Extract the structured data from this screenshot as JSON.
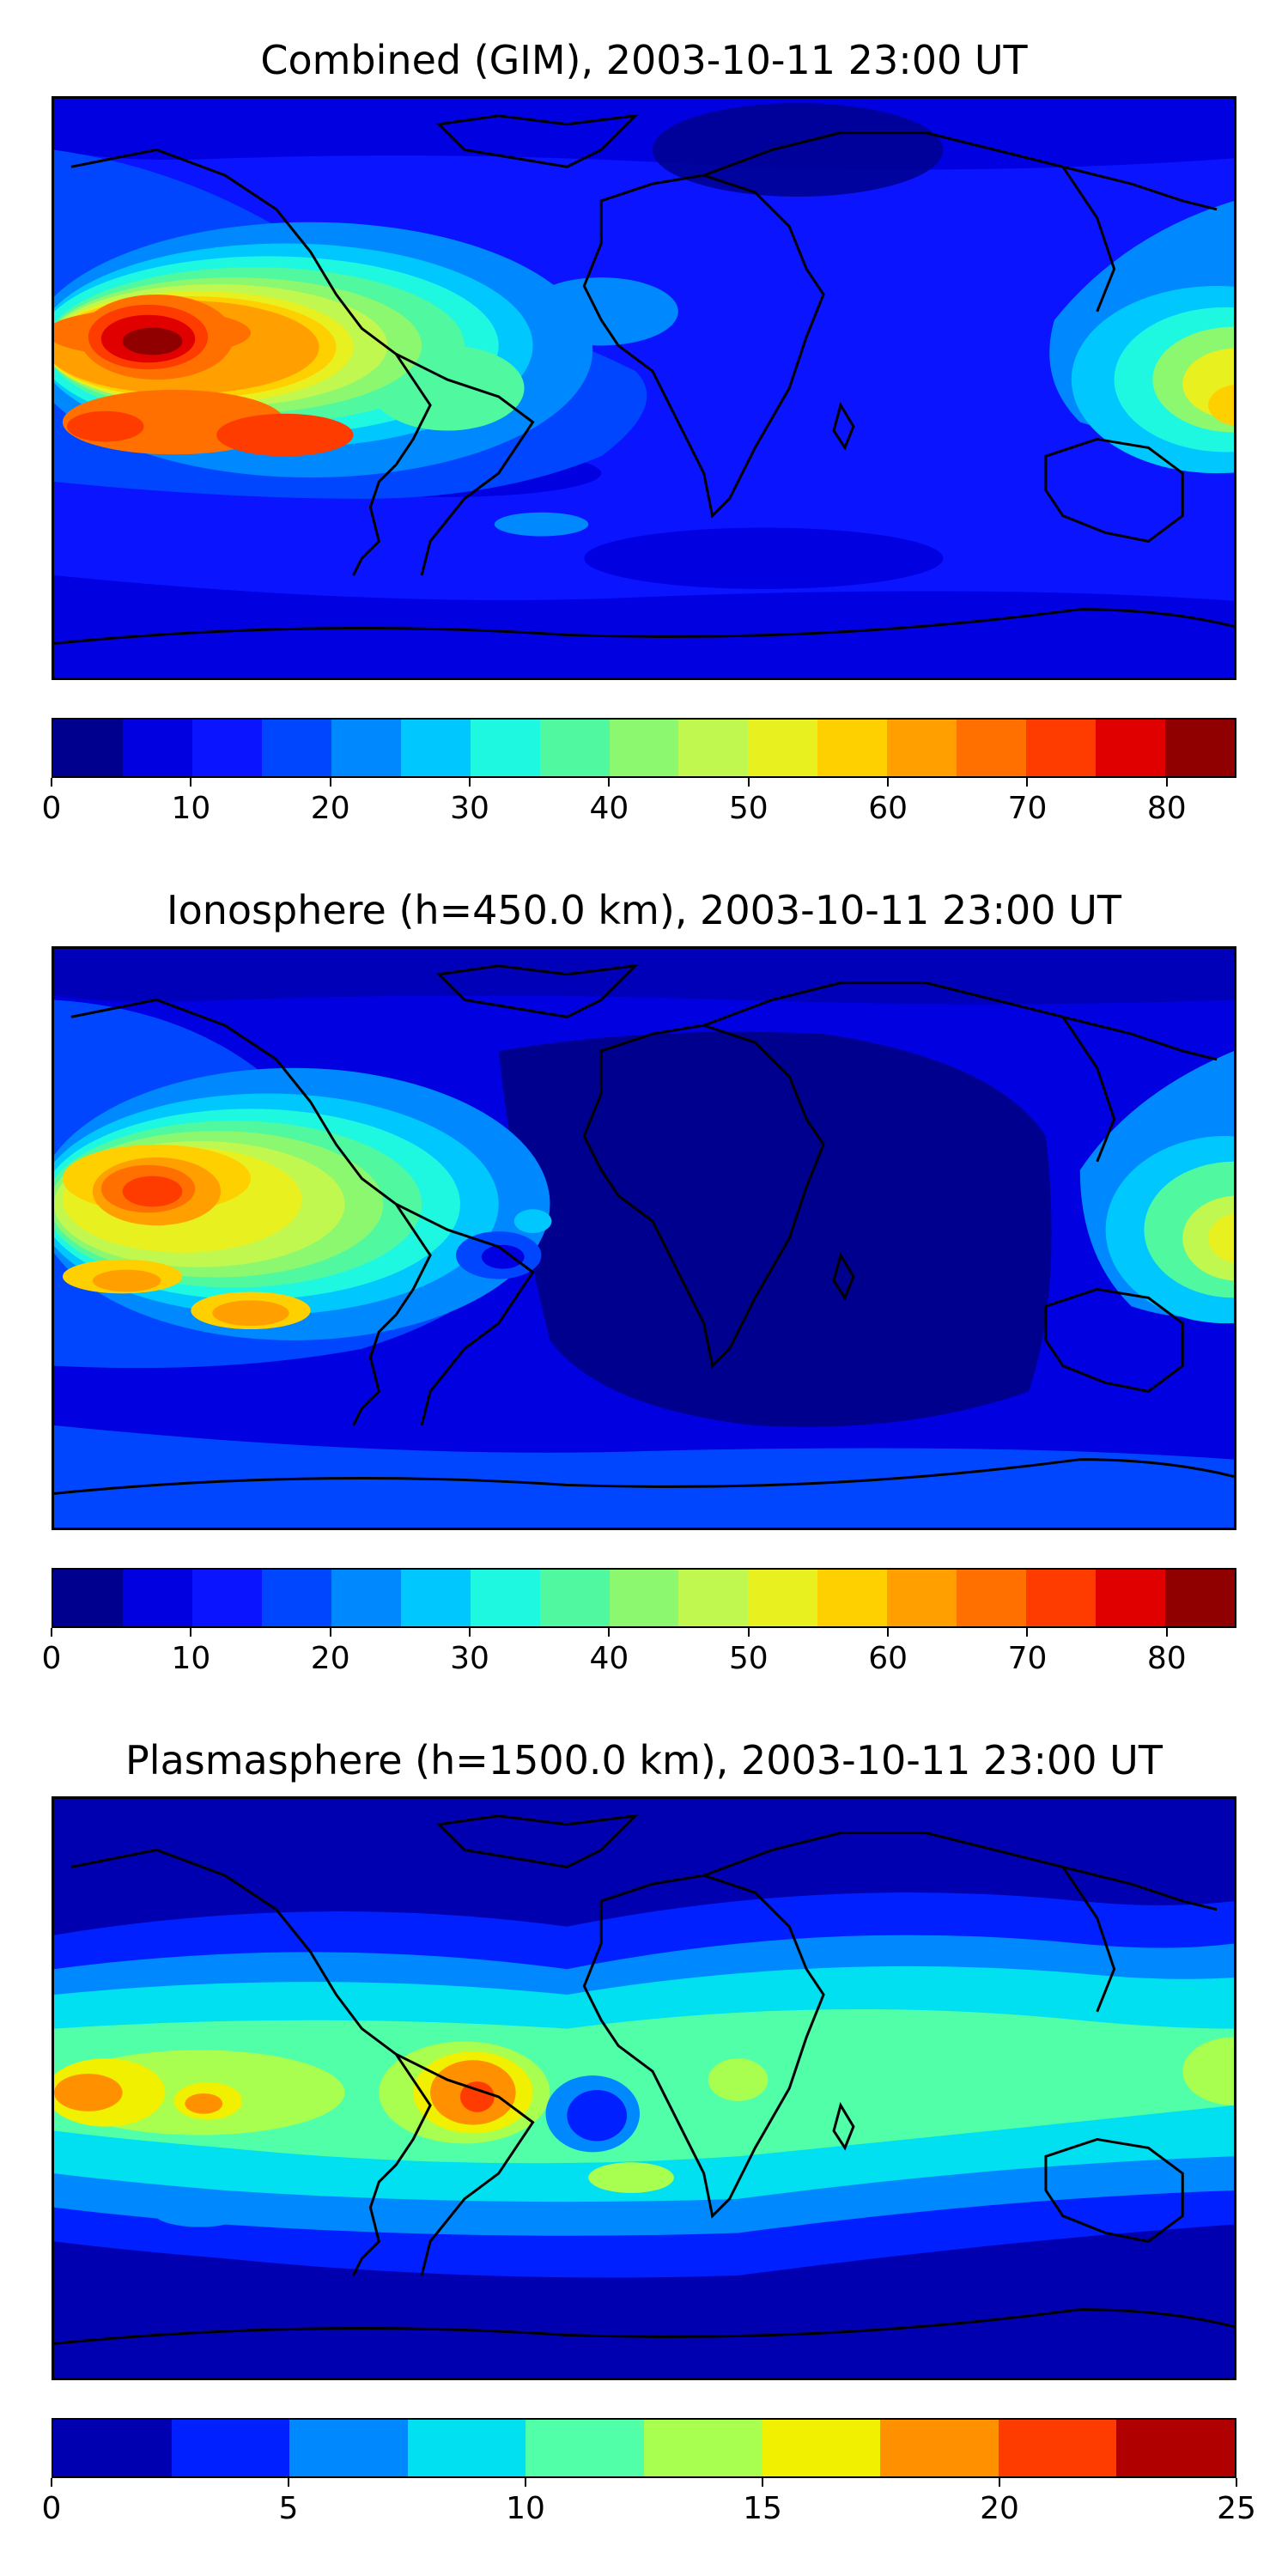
{
  "panels": [
    {
      "id": "combined",
      "title": "Combined (GIM), 2003-10-11 23:00 UT",
      "colorbar": {
        "colors": [
          "#00008e",
          "#0000e0",
          "#0a14ff",
          "#0046ff",
          "#0088ff",
          "#00c8ff",
          "#1ef8e0",
          "#50f8a0",
          "#8cf870",
          "#c0f850",
          "#e8f020",
          "#ffd000",
          "#ffa000",
          "#ff7000",
          "#ff3c00",
          "#e00000",
          "#900000"
        ],
        "ticks": [
          0,
          10,
          20,
          30,
          40,
          50,
          60,
          70,
          80
        ],
        "tick_labels": [
          "0",
          "10",
          "20",
          "30",
          "40",
          "50",
          "60",
          "70",
          "80"
        ],
        "min": 0,
        "max": 85
      }
    },
    {
      "id": "ionosphere",
      "title": "Ionosphere  (h=450.0 km), 2003-10-11 23:00 UT",
      "colorbar": {
        "colors": [
          "#00008e",
          "#0000e0",
          "#0a14ff",
          "#0046ff",
          "#0088ff",
          "#00c8ff",
          "#1ef8e0",
          "#50f8a0",
          "#8cf870",
          "#c0f850",
          "#e8f020",
          "#ffd000",
          "#ffa000",
          "#ff7000",
          "#ff3c00",
          "#e00000",
          "#900000"
        ],
        "ticks": [
          0,
          10,
          20,
          30,
          40,
          50,
          60,
          70,
          80
        ],
        "tick_labels": [
          "0",
          "10",
          "20",
          "30",
          "40",
          "50",
          "60",
          "70",
          "80"
        ],
        "min": 0,
        "max": 85
      }
    },
    {
      "id": "plasmasphere",
      "title": "Plasmasphere (h=1500.0 km), 2003-10-11 23:00 UT",
      "colorbar": {
        "colors": [
          "#0000b0",
          "#0020ff",
          "#0088ff",
          "#00e0f0",
          "#50ffa8",
          "#a8ff50",
          "#f0f000",
          "#ff9000",
          "#ff3c00",
          "#b00000"
        ],
        "ticks": [
          0,
          5,
          10,
          15,
          20,
          25
        ],
        "tick_labels": [
          "0",
          "5",
          "10",
          "15",
          "20",
          "25"
        ],
        "min": 0,
        "max": 25
      }
    }
  ]
}
